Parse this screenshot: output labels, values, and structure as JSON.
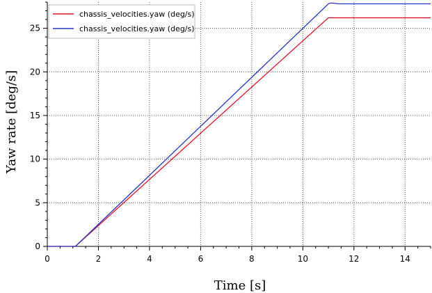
{
  "chart_data": {
    "type": "line",
    "xlabel": "Time [s]",
    "ylabel": "Yaw rate [deg/s]",
    "xlim": [
      0,
      15
    ],
    "ylim": [
      0,
      28
    ],
    "x_ticks": [
      0,
      2,
      4,
      6,
      8,
      10,
      12,
      14
    ],
    "y_ticks": [
      0,
      5,
      10,
      15,
      20,
      25
    ],
    "grid": true,
    "legend_position": "top-left",
    "series": [
      {
        "name": "chassis_velocities.yaw (deg/s)",
        "color": "#e0142a",
        "x": [
          0,
          1.1,
          11.0,
          15.0
        ],
        "y": [
          0,
          0,
          26.2,
          26.2
        ]
      },
      {
        "name": "chassis_velocities.yaw (deg/s)",
        "color": "#2233cc",
        "x": [
          0,
          1.1,
          11.0,
          11.1,
          11.4,
          15.0
        ],
        "y": [
          0,
          0,
          27.8,
          27.9,
          27.8,
          27.8
        ]
      }
    ]
  }
}
